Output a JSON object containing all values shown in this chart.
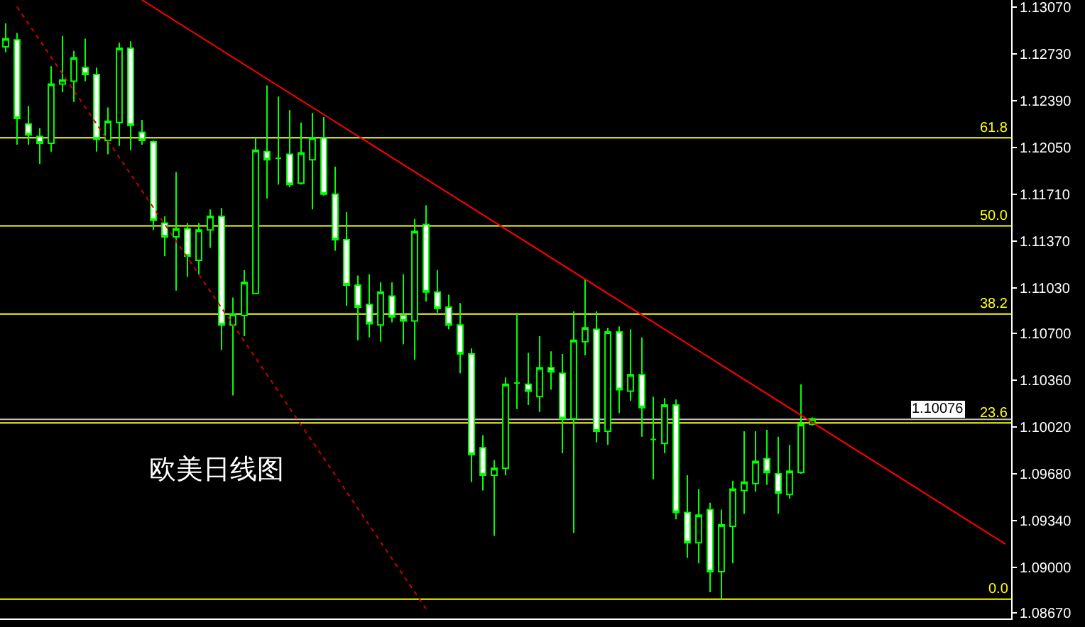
{
  "chart_data": {
    "type": "candlestick",
    "categories": [
      null,
      null,
      null,
      null,
      null,
      null,
      null,
      null,
      null,
      null,
      null,
      null,
      null,
      null,
      null,
      null,
      null,
      null,
      null,
      null,
      null,
      null,
      null,
      null,
      null,
      null,
      null,
      null,
      null,
      null,
      null,
      null,
      null,
      null,
      null,
      null,
      null,
      null,
      null,
      null,
      null,
      null,
      null,
      null,
      null,
      null,
      null,
      null,
      null,
      null,
      null,
      null,
      null,
      null,
      null,
      null,
      null,
      null,
      null,
      null,
      null,
      null,
      null,
      null,
      null,
      null,
      null,
      null,
      null,
      null,
      null,
      null,
      null,
      null,
      null,
      null,
      null,
      null,
      null,
      null,
      null,
      null,
      null,
      null,
      null,
      null,
      null,
      null,
      null
    ],
    "ohlc": [
      [
        1.1278,
        1.1295,
        1.1274,
        1.1284
      ],
      [
        1.1283,
        1.1288,
        1.1207,
        1.1226
      ],
      [
        1.1222,
        1.1235,
        1.1207,
        1.1214
      ],
      [
        1.1213,
        1.1219,
        1.1193,
        1.1208
      ],
      [
        1.1208,
        1.1264,
        1.1202,
        1.1251
      ],
      [
        1.1251,
        1.1286,
        1.1245,
        1.1254
      ],
      [
        1.1253,
        1.1275,
        1.1238,
        1.127
      ],
      [
        1.1263,
        1.1284,
        1.1253,
        1.1258
      ],
      [
        1.1258,
        1.1263,
        1.1202,
        1.1211
      ],
      [
        1.121,
        1.1234,
        1.12,
        1.1224
      ],
      [
        1.1223,
        1.1281,
        1.1206,
        1.1277
      ],
      [
        1.1277,
        1.1282,
        1.1203,
        1.1221
      ],
      [
        1.1216,
        1.1225,
        1.1207,
        1.121
      ],
      [
        1.1209,
        1.121,
        1.1145,
        1.1152
      ],
      [
        1.115,
        1.1155,
        1.1126,
        1.114
      ],
      [
        1.114,
        1.1187,
        1.1101,
        1.1146
      ],
      [
        1.1146,
        1.115,
        1.1111,
        1.1126
      ],
      [
        1.1123,
        1.115,
        1.1113,
        1.1145
      ],
      [
        1.1145,
        1.116,
        1.1132,
        1.1155
      ],
      [
        1.1155,
        1.1161,
        1.1058,
        1.1076
      ],
      [
        1.1076,
        1.1096,
        1.1025,
        1.1084
      ],
      [
        1.1083,
        1.1116,
        1.1068,
        1.1107
      ],
      [
        1.1099,
        1.1212,
        1.1099,
        1.1203
      ],
      [
        1.1202,
        1.125,
        1.1168,
        1.1196
      ],
      [
        1.1197,
        1.1242,
        1.1178,
        1.1197
      ],
      [
        1.12,
        1.1232,
        1.1176,
        1.1178
      ],
      [
        1.1179,
        1.1223,
        1.1178,
        1.1201
      ],
      [
        1.1196,
        1.123,
        1.116,
        1.1212
      ],
      [
        1.1212,
        1.1227,
        1.117,
        1.1171
      ],
      [
        1.1171,
        1.1191,
        1.113,
        1.1138
      ],
      [
        1.1138,
        1.1158,
        1.109,
        1.1105
      ],
      [
        1.1105,
        1.1112,
        1.1065,
        1.1089
      ],
      [
        1.1091,
        1.1113,
        1.1067,
        1.1077
      ],
      [
        1.1076,
        1.1107,
        1.1064,
        1.11
      ],
      [
        1.1097,
        1.1107,
        1.1078,
        1.1082
      ],
      [
        1.1083,
        1.1113,
        1.1062,
        1.1079
      ],
      [
        1.1079,
        1.1153,
        1.1051,
        1.1144
      ],
      [
        1.1149,
        1.1163,
        1.1093,
        1.11
      ],
      [
        1.11,
        1.1116,
        1.1085,
        1.1088
      ],
      [
        1.1089,
        1.1098,
        1.1073,
        1.1076
      ],
      [
        1.1076,
        1.1092,
        1.1041,
        1.1055
      ],
      [
        1.1055,
        1.1059,
        1.0962,
        1.0982
      ],
      [
        1.0987,
        1.0996,
        1.0956,
        1.0967
      ],
      [
        1.0967,
        1.0978,
        1.0923,
        1.0972
      ],
      [
        1.0972,
        1.1038,
        1.0967,
        1.1033
      ],
      [
        1.1034,
        1.1084,
        1.1015,
        1.1034
      ],
      [
        1.1033,
        1.1056,
        1.1018,
        1.1028
      ],
      [
        1.1024,
        1.1068,
        1.1013,
        1.1045
      ],
      [
        1.1045,
        1.1057,
        1.1029,
        1.1042
      ],
      [
        1.1041,
        1.1055,
        1.0983,
        1.1008
      ],
      [
        1.1008,
        1.1086,
        1.0925,
        1.1065
      ],
      [
        1.1064,
        1.1109,
        1.1054,
        1.1074
      ],
      [
        1.1073,
        1.1086,
        1.0991,
        1.0999
      ],
      [
        1.0999,
        1.1074,
        1.0989,
        1.1071
      ],
      [
        1.1071,
        1.1075,
        1.1012,
        1.1029
      ],
      [
        1.1028,
        1.1073,
        1.1021,
        1.104
      ],
      [
        1.104,
        1.1067,
        1.0995,
        1.1016
      ],
      [
        1.0993,
        1.1024,
        1.0964,
        1.0993
      ],
      [
        1.099,
        1.1023,
        1.0983,
        1.1018
      ],
      [
        1.1018,
        1.1022,
        1.0935,
        1.094
      ],
      [
        1.094,
        1.0967,
        1.0907,
        1.0918
      ],
      [
        1.0918,
        1.0957,
        1.0903,
        1.0938
      ],
      [
        1.0942,
        1.0947,
        1.0882,
        1.0897
      ],
      [
        1.0897,
        1.0942,
        1.0877,
        1.0931
      ],
      [
        1.093,
        1.0963,
        1.0903,
        1.0957
      ],
      [
        1.0956,
        1.0999,
        1.0939,
        1.0962
      ],
      [
        1.0961,
        1.0999,
        1.0955,
        1.0977
      ],
      [
        1.0979,
        1.1,
        1.096,
        1.0969
      ],
      [
        1.0968,
        1.0995,
        1.0939,
        1.0954
      ],
      [
        1.0953,
        1.0989,
        1.095,
        1.097
      ],
      [
        1.0969,
        1.1033,
        1.0968,
        1.1004
      ],
      [
        1.1004,
        1.1009,
        1.1003,
        1.1008
      ],
      null,
      null,
      null,
      null,
      null,
      null,
      null,
      null,
      null,
      null,
      null,
      null,
      null,
      null,
      null,
      null,
      null
    ],
    "color": "#00ff00",
    "series": [
      {
        "type": "line",
        "color": "#ff0000",
        "line_style": "solid",
        "values": [
          null,
          null,
          null,
          null,
          null,
          null,
          null,
          null,
          null,
          null,
          null,
          null,
          1.1312,
          null,
          null,
          null,
          null,
          null,
          null,
          null,
          null,
          null,
          null,
          null,
          null,
          null,
          null,
          null,
          null,
          null,
          null,
          null,
          null,
          null,
          null,
          null,
          null,
          null,
          null,
          null,
          null,
          null,
          null,
          null,
          null,
          null,
          null,
          null,
          null,
          null,
          null,
          null,
          null,
          null,
          null,
          null,
          null,
          null,
          null,
          null,
          null,
          null,
          null,
          null,
          null,
          null,
          null,
          null,
          null,
          null,
          null,
          null,
          null,
          null,
          null,
          null,
          null,
          null,
          null,
          null,
          null,
          null,
          null,
          null,
          null,
          null,
          null,
          null,
          1.0917
        ]
      },
      {
        "type": "line",
        "color": "#cc0000",
        "line_style": "dotted",
        "values": [
          null,
          1.1307,
          null,
          null,
          null,
          null,
          null,
          null,
          null,
          null,
          null,
          null,
          null,
          null,
          null,
          null,
          null,
          null,
          null,
          null,
          null,
          null,
          null,
          null,
          null,
          null,
          null,
          null,
          null,
          null,
          null,
          null,
          null,
          null,
          null,
          null,
          null,
          1.087,
          null,
          null,
          null,
          null,
          null,
          null,
          null,
          null,
          null,
          null,
          null,
          null,
          null,
          null,
          null,
          null,
          null,
          null,
          null,
          null,
          null,
          null,
          null,
          null,
          null,
          null,
          null,
          null,
          null,
          null,
          null,
          null,
          null,
          null,
          null,
          null,
          null,
          null,
          null,
          null,
          null,
          null,
          null,
          null,
          null,
          null,
          null,
          null,
          null,
          null,
          null
        ]
      }
    ],
    "ref_lines": [
      {
        "axis": "y",
        "value": 1.1212,
        "color": "#ffff00"
      },
      {
        "axis": "y",
        "value": 1.1148,
        "color": "#ffff00"
      },
      {
        "axis": "y",
        "value": 1.1084,
        "color": "#ffff00"
      },
      {
        "axis": "y",
        "value": 1.1005,
        "color": "#ffff00"
      },
      {
        "axis": "y",
        "value": 1.0877,
        "color": "#ffff00"
      },
      {
        "axis": "y",
        "value": 1.10076,
        "label": "1.10076",
        "color": "#c0c0c0"
      }
    ],
    "annotations": [
      "欧美日线图",
      {
        "text": "61.8",
        "y": 1.1212
      },
      {
        "text": "50.0",
        "y": 1.1148
      },
      {
        "text": "38.2",
        "y": 1.1084
      },
      {
        "text": "23.6",
        "y": 1.1005
      },
      {
        "text": "0.0",
        "y": 1.0877
      }
    ],
    "ylim": [
      1.0863,
      1.1312
    ],
    "yticks": [
      {
        "value": 1.1307,
        "label": "1.13070"
      },
      {
        "value": 1.1273,
        "label": "1.12730"
      },
      {
        "value": 1.1239,
        "label": "1.12390"
      },
      {
        "value": 1.1205,
        "label": "1.12050"
      },
      {
        "value": 1.1171,
        "label": "1.11710"
      },
      {
        "value": 1.1137,
        "label": "1.11370"
      },
      {
        "value": 1.1103,
        "label": "1.11030"
      },
      {
        "value": 1.107,
        "label": "1.10700"
      },
      {
        "value": 1.1036,
        "label": "1.10360"
      },
      {
        "value": 1.1002,
        "label": "1.10020"
      },
      {
        "value": 1.0968,
        "label": "1.09680"
      },
      {
        "value": 1.0934,
        "label": "1.09340"
      },
      {
        "value": 1.09,
        "label": "1.09000"
      },
      {
        "value": 1.0867,
        "label": "1.08670"
      }
    ],
    "grid": false
  }
}
